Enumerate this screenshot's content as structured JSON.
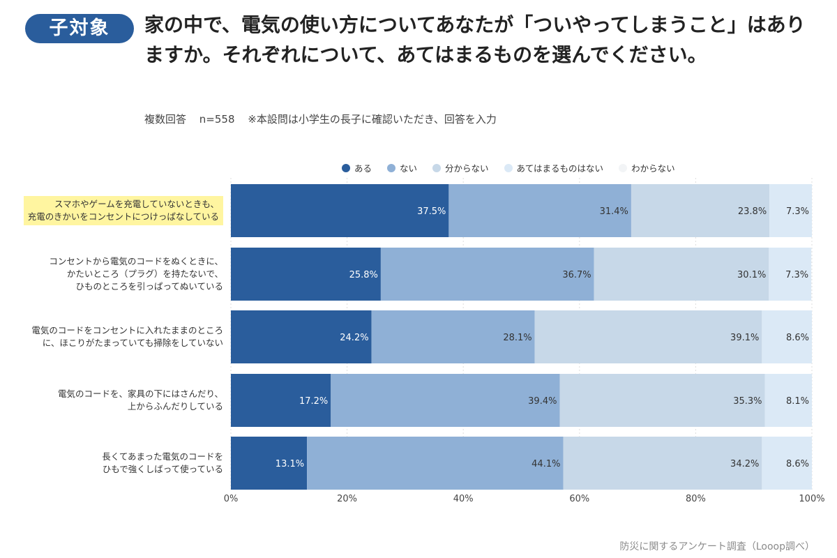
{
  "header": {
    "badge": "子対象",
    "question": "家の中で、電気の使い方についてあなたが「ついやってしまうこと」はありますか。それぞれについて、あてはまるものを選んでください。",
    "note_answer_type": "複数回答",
    "note_n": "n=558",
    "note_remark": "※本設問は小学生の長子に確認いただき、回答を入力"
  },
  "colors": {
    "badge": "#2a5d9c",
    "series": [
      "#2a5d9c",
      "#8fb0d6",
      "#c7d8e8",
      "#dbe9f6",
      "#f2f4f6"
    ],
    "highlight": "#fff5a0"
  },
  "chart_data": {
    "type": "bar",
    "orientation": "horizontal",
    "stacked": true,
    "categories": [
      "スマホやゲームを充電していないときも、充電のきかいをコンセントにつけっぱなしている",
      "コンセントから電気のコードをぬくときに、かたいところ（プラグ）を持たないで、ひものところを引っぱってぬいている",
      "電気のコードをコンセントに入れたままのところに、ほこりがたまっていても掃除をしていない",
      "電気のコードを、家具の下にはさんだり、上からふんだりしている",
      "長くてあまった電気のコードをひもで強くしばって使っている"
    ],
    "category_lines": [
      [
        "スマホやゲームを充電していないときも、",
        "充電のきかいをコンセントにつけっぱなしている"
      ],
      [
        "コンセントから電気のコードをぬくときに、",
        "かたいところ（プラグ）を持たないで、",
        "ひものところを引っぱってぬいている"
      ],
      [
        "電気のコードをコンセントに入れたままのところ",
        "に、ほこりがたまっていても掃除をしていない"
      ],
      [
        "電気のコードを、家具の下にはさんだり、",
        "上からふんだりしている"
      ],
      [
        "長くてあまった電気のコードを",
        "ひもで強くしばって使っている"
      ]
    ],
    "highlighted_category": 0,
    "series": [
      {
        "name": "ある",
        "values": [
          37.5,
          25.8,
          24.2,
          17.2,
          13.1
        ],
        "labels": [
          "37.5%",
          "25.8%",
          "24.2%",
          "17.2%",
          "13.1%"
        ]
      },
      {
        "name": "ない",
        "values": [
          31.4,
          36.7,
          28.1,
          39.4,
          44.1
        ],
        "labels": [
          "31.4%",
          "36.7%",
          "28.1%",
          "39.4%",
          "44.1%"
        ]
      },
      {
        "name": "分からない",
        "values": [
          23.8,
          30.1,
          39.1,
          35.3,
          34.2
        ],
        "labels": [
          "23.8%",
          "30.1%",
          "39.1%",
          "35.3%",
          "34.2%"
        ]
      },
      {
        "name": "あてはまるものはない",
        "values": [
          7.3,
          7.3,
          8.6,
          8.1,
          8.6
        ],
        "labels": [
          "7.3%",
          "7.3%",
          "8.6%",
          "8.1%",
          "8.6%"
        ]
      },
      {
        "name": "わからない",
        "values": [
          0,
          0,
          0,
          0,
          0
        ],
        "labels": [
          "",
          "",
          "",
          "",
          ""
        ]
      }
    ],
    "x_ticks": [
      "0%",
      "20%",
      "40%",
      "60%",
      "80%",
      "100%"
    ],
    "xlim": [
      0,
      100
    ],
    "grid": true,
    "legend_position": "top"
  },
  "footer": {
    "source": "防災に関するアンケート調査（Looop調べ）"
  }
}
